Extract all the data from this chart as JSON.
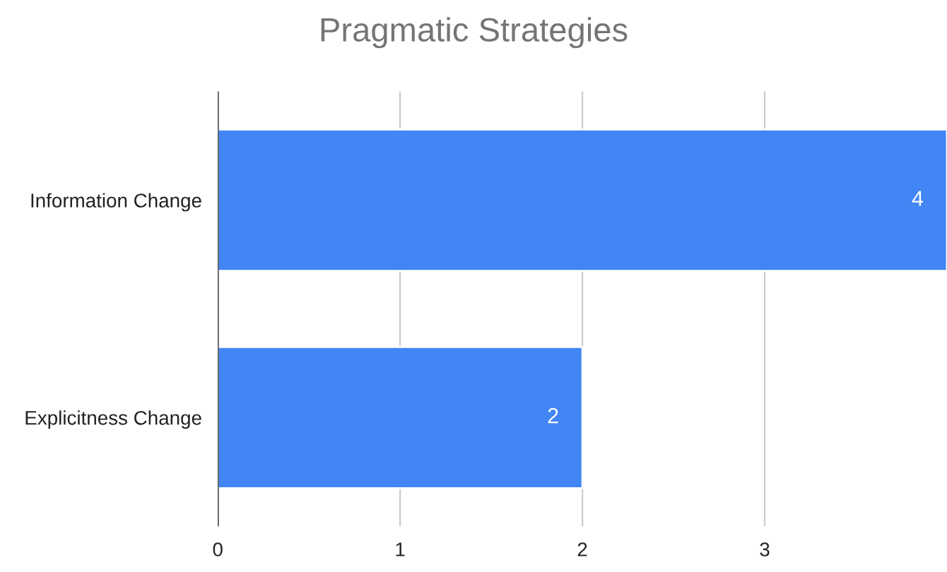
{
  "chart_data": {
    "type": "bar",
    "orientation": "horizontal",
    "title": "Pragmatic Strategies",
    "categories": [
      "Information Change",
      "Explicitness Change"
    ],
    "values": [
      4,
      2
    ],
    "color": "#4285f4",
    "xlim": [
      0,
      4
    ],
    "xticks": [
      0,
      1,
      2,
      3
    ],
    "grid": "x",
    "data_labels": true,
    "legend": false
  }
}
